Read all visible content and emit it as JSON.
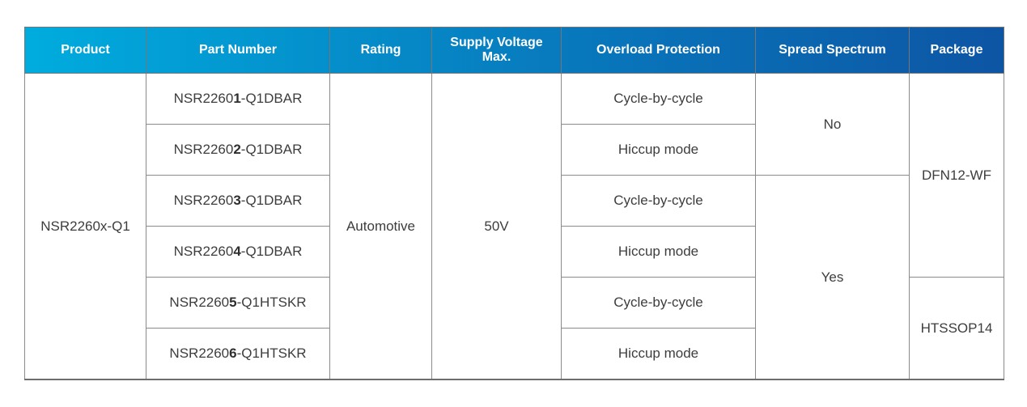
{
  "colors": {
    "header_gradient_start": "#00ACDE",
    "header_gradient_mid": "#0879BD",
    "header_gradient_end": "#0D55A4",
    "header_text": "#ffffff",
    "body_text": "#3d3d3d",
    "grid_line": "#8a8a8a",
    "background": "#ffffff"
  },
  "table": {
    "header": {
      "columns": [
        {
          "label": "Product"
        },
        {
          "label": "Part Number"
        },
        {
          "label": "Rating"
        },
        {
          "label": "Supply Voltage\nMax."
        },
        {
          "label": "Overload Protection"
        },
        {
          "label": "Spread Spectrum"
        },
        {
          "label": "Package"
        }
      ]
    },
    "product": "NSR2260x-Q1",
    "rating": "Automotive",
    "supply_voltage_max": "50V",
    "parts": [
      {
        "prefix": "NSR2260",
        "bold": "1",
        "suffix": "-Q1DBAR"
      },
      {
        "prefix": "NSR2260",
        "bold": "2",
        "suffix": "-Q1DBAR"
      },
      {
        "prefix": "NSR2260",
        "bold": "3",
        "suffix": "-Q1DBAR"
      },
      {
        "prefix": "NSR2260",
        "bold": "4",
        "suffix": "-Q1DBAR"
      },
      {
        "prefix": "NSR2260",
        "bold": "5",
        "suffix": "-Q1HTSKR"
      },
      {
        "prefix": "NSR2260",
        "bold": "6",
        "suffix": "-Q1HTSKR"
      }
    ],
    "overload": [
      "Cycle-by-cycle",
      "Hiccup mode",
      "Cycle-by-cycle",
      "Hiccup mode",
      "Cycle-by-cycle",
      "Hiccup mode"
    ],
    "spread_spectrum": [
      {
        "value": "No",
        "row_span": 2
      },
      {
        "value": "Yes",
        "row_span": 4
      }
    ],
    "package": [
      {
        "value": "DFN12-WF",
        "row_span": 4
      },
      {
        "value": "HTSSOP14",
        "row_span": 2
      }
    ]
  },
  "chart_data": {
    "type": "table",
    "title": "",
    "columns": [
      "Product",
      "Part Number",
      "Rating",
      "Supply Voltage Max.",
      "Overload Protection",
      "Spread Spectrum",
      "Package"
    ],
    "rows": [
      [
        "NSR2260x-Q1",
        "NSR22601-Q1DBAR",
        "Automotive",
        "50V",
        "Cycle-by-cycle",
        "No",
        "DFN12-WF"
      ],
      [
        "NSR2260x-Q1",
        "NSR22602-Q1DBAR",
        "Automotive",
        "50V",
        "Hiccup mode",
        "No",
        "DFN12-WF"
      ],
      [
        "NSR2260x-Q1",
        "NSR22603-Q1DBAR",
        "Automotive",
        "50V",
        "Cycle-by-cycle",
        "Yes",
        "DFN12-WF"
      ],
      [
        "NSR2260x-Q1",
        "NSR22604-Q1DBAR",
        "Automotive",
        "50V",
        "Hiccup mode",
        "Yes",
        "DFN12-WF"
      ],
      [
        "NSR2260x-Q1",
        "NSR22605-Q1HTSKR",
        "Automotive",
        "50V",
        "Cycle-by-cycle",
        "Yes",
        "HTSSOP14"
      ],
      [
        "NSR2260x-Q1",
        "NSR22606-Q1HTSKR",
        "Automotive",
        "50V",
        "Hiccup mode",
        "Yes",
        "HTSSOP14"
      ]
    ],
    "merged_cells": [
      {
        "column": "Product",
        "value": "NSR2260x-Q1",
        "rows": [
          1,
          6
        ]
      },
      {
        "column": "Rating",
        "value": "Automotive",
        "rows": [
          1,
          6
        ]
      },
      {
        "column": "Supply Voltage Max.",
        "value": "50V",
        "rows": [
          1,
          6
        ]
      },
      {
        "column": "Spread Spectrum",
        "value": "No",
        "rows": [
          1,
          2
        ]
      },
      {
        "column": "Spread Spectrum",
        "value": "Yes",
        "rows": [
          3,
          6
        ]
      },
      {
        "column": "Package",
        "value": "DFN12-WF",
        "rows": [
          1,
          4
        ]
      },
      {
        "column": "Package",
        "value": "HTSSOP14",
        "rows": [
          5,
          6
        ]
      }
    ],
    "layout_hints": {
      "header_background": "horizontal gradient cyan #00ACDE to dark blue #0D55A4",
      "grid": "on",
      "bold_fragment": "5th digit of each part number is bold"
    }
  }
}
